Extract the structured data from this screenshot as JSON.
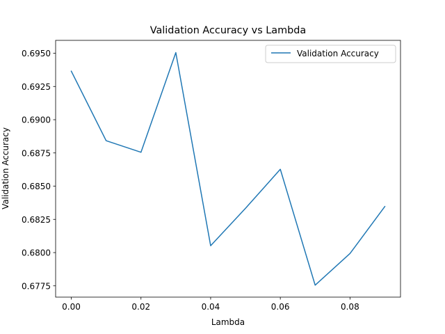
{
  "chart_data": {
    "type": "line",
    "title": "Validation Accuracy vs Lambda",
    "xlabel": "Lambda",
    "ylabel": "Validation Accuracy",
    "xlim": [
      -0.0045,
      0.0945
    ],
    "ylim": [
      0.67665,
      0.69597
    ],
    "xticks": [
      0.0,
      0.02,
      0.04,
      0.06,
      0.08
    ],
    "xtick_labels": [
      "0.00",
      "0.02",
      "0.04",
      "0.06",
      "0.08"
    ],
    "yticks": [
      0.6775,
      0.68,
      0.6825,
      0.685,
      0.6875,
      0.69,
      0.6925,
      0.695
    ],
    "ytick_labels": [
      "0.6775",
      "0.6800",
      "0.6825",
      "0.6850",
      "0.6875",
      "0.6900",
      "0.6925",
      "0.6950"
    ],
    "grid": false,
    "legend_position": "top-right",
    "series": [
      {
        "name": "Validation Accuracy",
        "color": "#1f77b4",
        "x": [
          0.0,
          0.01,
          0.02,
          0.03,
          0.04,
          0.05,
          0.06,
          0.07,
          0.08,
          0.09
        ],
        "y": [
          0.69365,
          0.68842,
          0.68755,
          0.69505,
          0.68052,
          0.68333,
          0.68627,
          0.67755,
          0.67993,
          0.68347
        ]
      }
    ]
  }
}
